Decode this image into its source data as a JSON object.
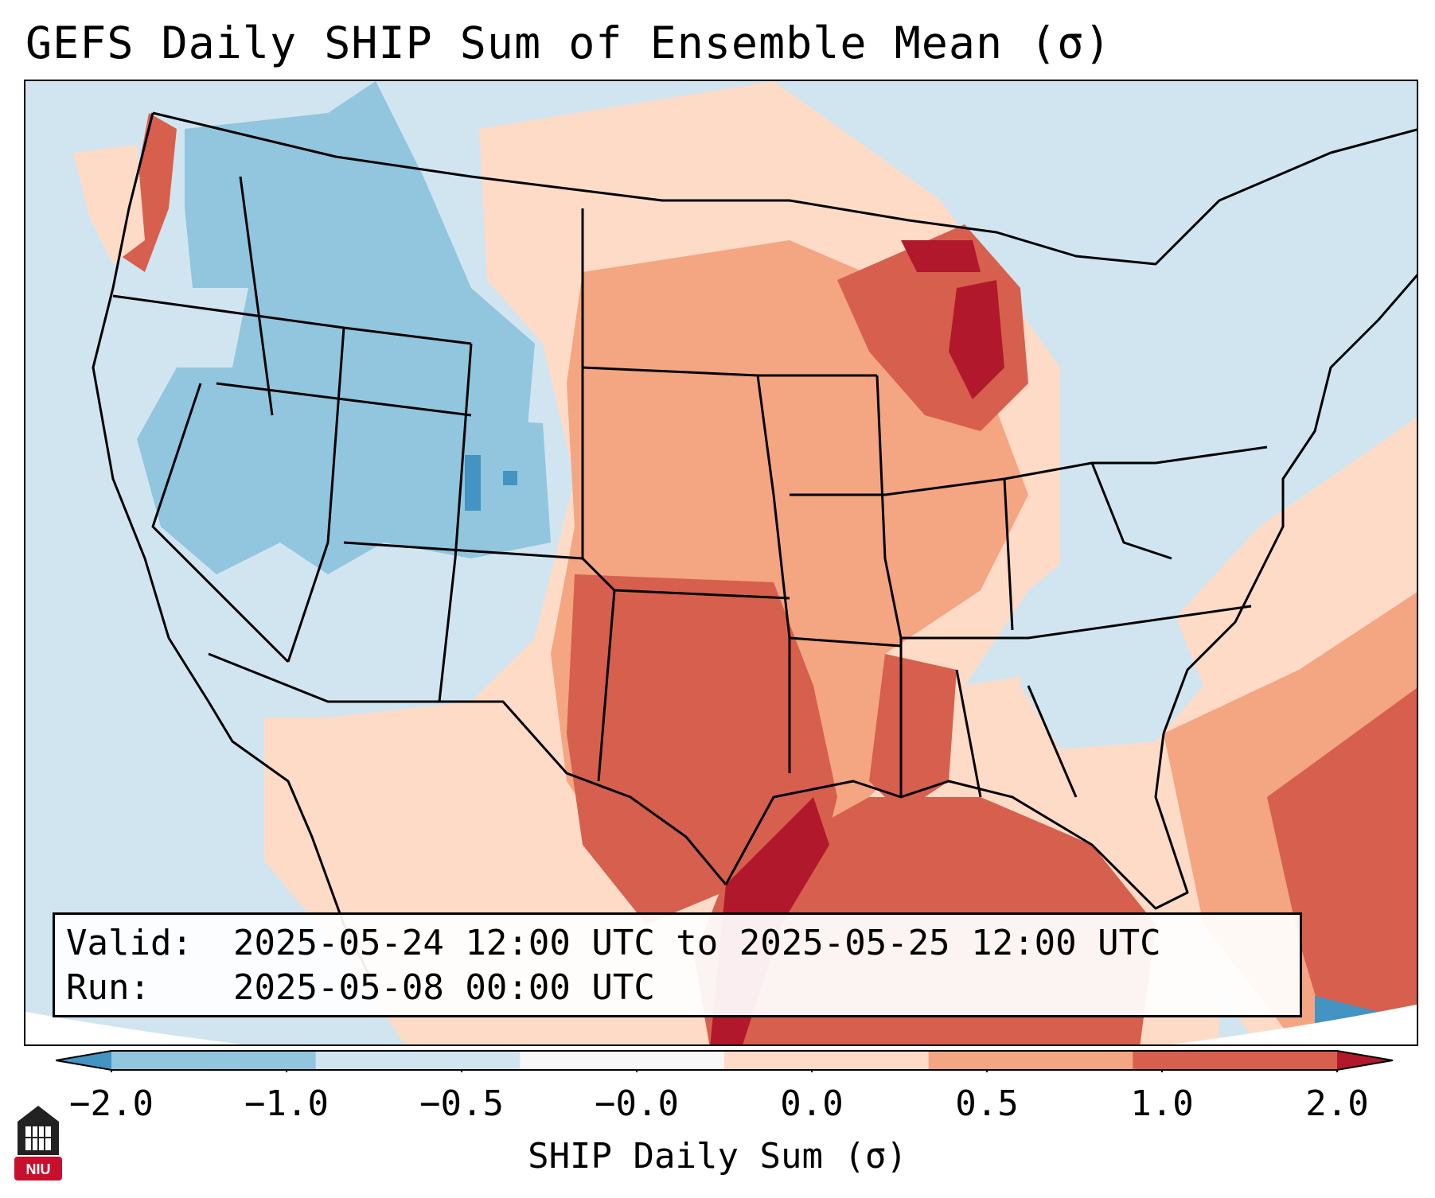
{
  "title": "GEFS Daily SHIP Sum of Ensemble Mean (σ)",
  "info": {
    "valid_label": "Valid:",
    "valid_value": "2025-05-24 12:00 UTC to 2025-05-25 12:00 UTC",
    "run_label": "Run:",
    "run_value": "2025-05-08 00:00 UTC"
  },
  "colorbar": {
    "label": "SHIP Daily Sum (σ)",
    "ticks": [
      "−2.0",
      "−1.0",
      "−0.5",
      "−0.0",
      "0.0",
      "0.5",
      "1.0",
      "2.0"
    ],
    "colors": [
      "#4393c3",
      "#92c5de",
      "#d1e5f0",
      "#f7f7f7",
      "#fddbc7",
      "#f4a582",
      "#d6604d",
      "#b2182b"
    ]
  },
  "logo": {
    "text": "NIU",
    "color": "#c8102e"
  },
  "map": {
    "ocean_color": "#d1e5f0",
    "outside_color": "#ffffff"
  }
}
